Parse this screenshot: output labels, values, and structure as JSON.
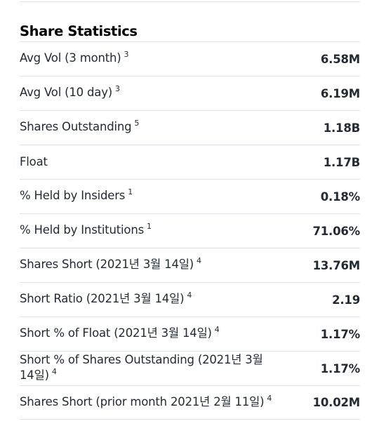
{
  "section": {
    "title": "Share Statistics"
  },
  "rows": [
    {
      "label": "Avg Vol (3 month)",
      "note": "3",
      "value": "6.58M"
    },
    {
      "label": "Avg Vol (10 day)",
      "note": "3",
      "value": "6.19M"
    },
    {
      "label": "Shares Outstanding",
      "note": "5",
      "value": "1.18B"
    },
    {
      "label": "Float",
      "note": "",
      "value": "1.17B"
    },
    {
      "label": "% Held by Insiders",
      "note": "1",
      "value": "0.18%"
    },
    {
      "label": "% Held by Institutions",
      "note": "1",
      "value": "71.06%"
    },
    {
      "label": "Shares Short (2021년 3월 14일)",
      "note": "4",
      "value": "13.76M"
    },
    {
      "label": "Short Ratio (2021년 3월 14일)",
      "note": "4",
      "value": "2.19"
    },
    {
      "label": "Short % of Float (2021년 3월 14일)",
      "note": "4",
      "value": "1.17%"
    },
    {
      "label": "Short % of Shares Outstanding (2021년 3월 14일)",
      "note": "4",
      "value": "1.17%"
    },
    {
      "label": "Shares Short (prior month 2021년 2월 11일)",
      "note": "4",
      "value": "10.02M"
    }
  ]
}
